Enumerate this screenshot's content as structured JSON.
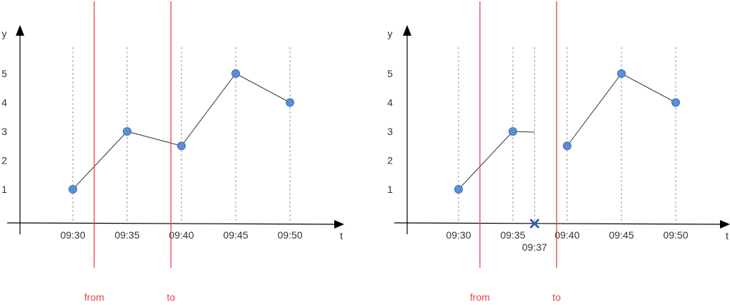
{
  "colors": {
    "axis": "#000000",
    "line": "#333333",
    "point_fill": "#5b8ed6",
    "point_stroke": "#3f6fb5",
    "marker": "#e5454b",
    "gridline": "#999999",
    "cross": "#2f5fb0"
  },
  "chart_data": [
    {
      "type": "line",
      "xlabel": "t",
      "ylabel": "y",
      "x_ticks": [
        "09:30",
        "09:35",
        "09:40",
        "09:45",
        "09:50"
      ],
      "y_ticks": [
        "1",
        "2",
        "3",
        "4",
        "5"
      ],
      "series": [
        {
          "points": [
            {
              "t": "09:30",
              "y": 1
            },
            {
              "t": "09:35",
              "y": 3
            },
            {
              "t": "09:40",
              "y": 2.5
            },
            {
              "t": "09:45",
              "y": 5
            },
            {
              "t": "09:50",
              "y": 4
            }
          ]
        }
      ],
      "range_markers": [
        {
          "label": "from",
          "t": "09:32"
        },
        {
          "label": "to",
          "t": "09:39"
        }
      ]
    },
    {
      "type": "line",
      "xlabel": "t",
      "ylabel": "y",
      "x_ticks": [
        "09:30",
        "09:35",
        "09:40",
        "09:45",
        "09:50"
      ],
      "y_ticks": [
        "1",
        "2",
        "3",
        "4",
        "5"
      ],
      "series": [
        {
          "points": [
            {
              "t": "09:30",
              "y": 1
            },
            {
              "t": "09:35",
              "y": 3
            },
            {
              "t": "09:40",
              "y": 2.5
            },
            {
              "t": "09:45",
              "y": 5
            },
            {
              "t": "09:50",
              "y": 4
            }
          ]
        }
      ],
      "range_markers": [
        {
          "label": "from",
          "t": "09:32"
        },
        {
          "label": "to",
          "t": "09:39"
        }
      ],
      "gap": {
        "from": "09:35",
        "to": "09:40",
        "cut_at": "09:37"
      },
      "annotation": {
        "label": "09:37",
        "t": "09:37"
      }
    }
  ]
}
